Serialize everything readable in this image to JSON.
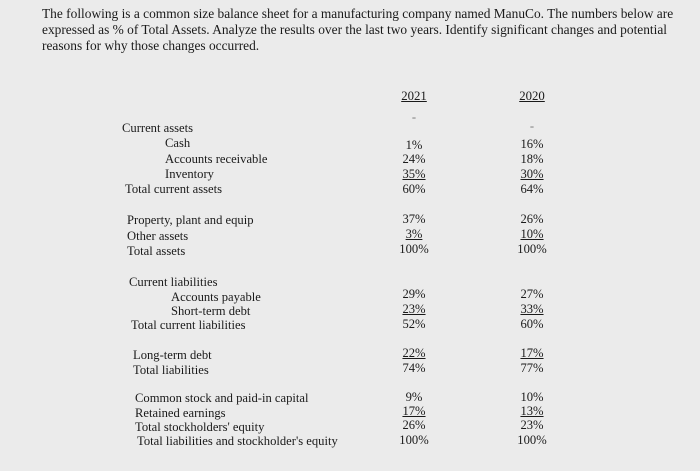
{
  "question": "The following is a common size balance sheet for a manufacturing company named ManuCo. The numbers below are expressed as % of Total Assets. Analyze the results over the last two years. Identify significant changes and potential reasons for why those changes occurred.",
  "columns": {
    "y2021": "2021",
    "y2020": "2020"
  },
  "dash": {
    "y2021": "-",
    "y2020": "-"
  },
  "rows": {
    "current_assets": {
      "label": "Current assets"
    },
    "cash": {
      "label": "Cash",
      "y2021": "1%",
      "y2020": "16%"
    },
    "ar": {
      "label": "Accounts receivable",
      "y2021": "24%",
      "y2020": "18%"
    },
    "inventory": {
      "label": "Inventory",
      "y2021": "35%",
      "y2020": "30%"
    },
    "tca": {
      "label": "Total current assets",
      "y2021": "60%",
      "y2020": "64%"
    },
    "ppe": {
      "label": "Property, plant and equip",
      "y2021": "37%",
      "y2020": "26%"
    },
    "other": {
      "label": "Other assets",
      "y2021": "3%",
      "y2020": "10%"
    },
    "ta": {
      "label": "Total assets",
      "y2021": "100%",
      "y2020": "100%"
    },
    "cl": {
      "label": "Current liabilities"
    },
    "ap": {
      "label": "Accounts payable",
      "y2021": "29%",
      "y2020": "27%"
    },
    "std": {
      "label": "Short-term debt",
      "y2021": "23%",
      "y2020": "33%"
    },
    "tcl": {
      "label": "Total current liabilities",
      "y2021": "52%",
      "y2020": "60%"
    },
    "ltd": {
      "label": "Long-term debt",
      "y2021": "22%",
      "y2020": "17%"
    },
    "tl": {
      "label": "Total liabilities",
      "y2021": "74%",
      "y2020": "77%"
    },
    "cs": {
      "label": "Common stock and paid-in capital",
      "y2021": "9%",
      "y2020": "10%"
    },
    "re": {
      "label": "Retained earnings",
      "y2021": "17%",
      "y2020": "13%"
    },
    "tse": {
      "label": "Total stockholders' equity",
      "y2021": "26%",
      "y2020": "23%"
    },
    "tlse": {
      "label": "Total liabilities and stockholder's equity",
      "y2021": "100%",
      "y2020": "100%"
    }
  }
}
